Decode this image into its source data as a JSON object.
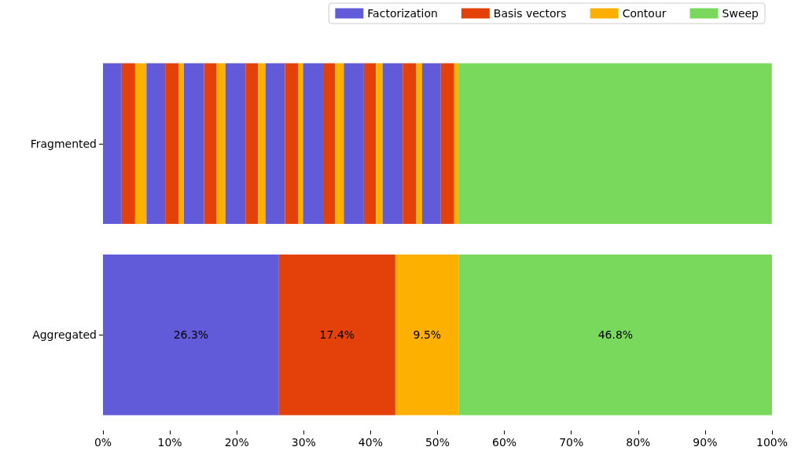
{
  "chart_data": {
    "type": "bar",
    "orientation": "horizontal",
    "stacked": true,
    "categories": [
      "Fragmented",
      "Aggregated"
    ],
    "series": [
      {
        "name": "Factorization",
        "color": "#625bd9",
        "values": [
          2.8,
          26.3
        ],
        "value_labels": [
          null,
          "26.3%"
        ]
      },
      {
        "name": "Basis vectors",
        "color": "#e34109",
        "values": [
          2.0,
          17.4
        ],
        "value_labels": [
          null,
          "17.4%"
        ]
      },
      {
        "name": "Contour",
        "color": "#feb000",
        "values": [
          1.7,
          9.5
        ],
        "value_labels": [
          null,
          "9.5%"
        ]
      },
      {
        "color": "#625bd9",
        "values": [
          2.8,
          null
        ]
      },
      {
        "color": "#e34109",
        "values": [
          2.0,
          null
        ]
      },
      {
        "color": "#feb000",
        "values": [
          0.8,
          null
        ]
      },
      {
        "color": "#625bd9",
        "values": [
          3.0,
          null
        ]
      },
      {
        "color": "#e34109",
        "values": [
          1.9,
          null
        ]
      },
      {
        "color": "#feb000",
        "values": [
          1.3,
          null
        ]
      },
      {
        "color": "#625bd9",
        "values": [
          3.0,
          null
        ]
      },
      {
        "color": "#e34109",
        "values": [
          1.9,
          null
        ]
      },
      {
        "color": "#feb000",
        "values": [
          1.1,
          null
        ]
      },
      {
        "color": "#625bd9",
        "values": [
          2.9,
          null
        ]
      },
      {
        "color": "#e34109",
        "values": [
          2.0,
          null
        ]
      },
      {
        "color": "#feb000",
        "values": [
          0.7,
          null
        ]
      },
      {
        "color": "#625bd9",
        "values": [
          3.0,
          null
        ]
      },
      {
        "color": "#e34109",
        "values": [
          1.8,
          null
        ]
      },
      {
        "color": "#feb000",
        "values": [
          1.3,
          null
        ]
      },
      {
        "color": "#625bd9",
        "values": [
          3.0,
          null
        ]
      },
      {
        "color": "#e34109",
        "values": [
          1.8,
          null
        ]
      },
      {
        "color": "#feb000",
        "values": [
          1.0,
          null
        ]
      },
      {
        "color": "#625bd9",
        "values": [
          3.0,
          null
        ]
      },
      {
        "color": "#e34109",
        "values": [
          2.0,
          null
        ]
      },
      {
        "color": "#feb000",
        "values": [
          0.9,
          null
        ]
      },
      {
        "color": "#625bd9",
        "values": [
          2.8,
          null
        ]
      },
      {
        "color": "#e34109",
        "values": [
          2.0,
          null
        ]
      },
      {
        "color": "#feb000",
        "values": [
          0.6,
          null
        ]
      },
      {
        "name": "Sweep",
        "color": "#78d95c",
        "values": [
          46.8,
          46.8
        ],
        "value_labels": [
          null,
          "46.8%"
        ]
      },
      {
        "color": "#feb000",
        "values": [
          0.1,
          null
        ]
      }
    ],
    "xlim": [
      0,
      100
    ],
    "xticks": [
      {
        "value": 0,
        "label": "0%"
      },
      {
        "value": 10,
        "label": "10%"
      },
      {
        "value": 20,
        "label": "20%"
      },
      {
        "value": 30,
        "label": "30%"
      },
      {
        "value": 40,
        "label": "40%"
      },
      {
        "value": 50,
        "label": "50%"
      },
      {
        "value": 60,
        "label": "60%"
      },
      {
        "value": 70,
        "label": "70%"
      },
      {
        "value": 80,
        "label": "80%"
      },
      {
        "value": 90,
        "label": "90%"
      },
      {
        "value": 100,
        "label": "100%"
      }
    ],
    "grid": false,
    "legend": "top right"
  }
}
